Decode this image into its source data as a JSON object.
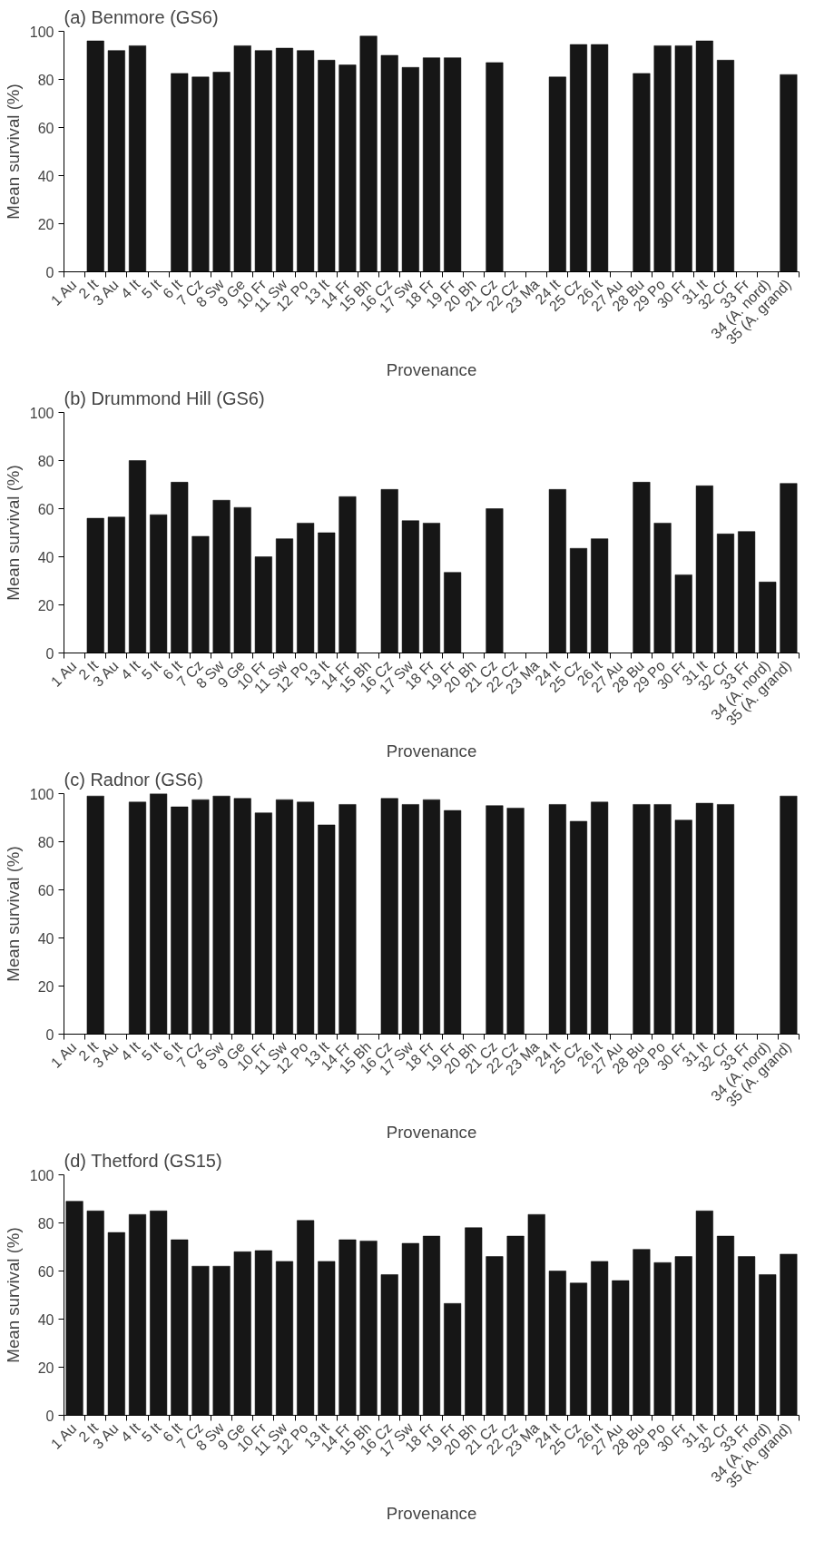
{
  "chart_data": [
    {
      "type": "bar",
      "title": "(a) Benmore (GS6)",
      "xlabel": "Provenance",
      "ylabel": "Mean survival (%)",
      "categories": [
        "1 Au",
        "2 It",
        "3 Au",
        "4 It",
        "5 It",
        "6 It",
        "7 Cz",
        "8 Sw",
        "9 Ge",
        "10 Fr",
        "11 Sw",
        "12 Po",
        "13 It",
        "14 Fr",
        "15 Bh",
        "16 Cz",
        "17 Sw",
        "18 Fr",
        "19 Fr",
        "20 Bh",
        "21 Cz",
        "22 Cz",
        "23 Ma",
        "24 It",
        "25 Cz",
        "26 It",
        "27 Au",
        "28 Bu",
        "29 Po",
        "30 Fr",
        "31 It",
        "32 Cr",
        "33 Fr",
        "34 (A. nord)",
        "35 (A. grand)"
      ],
      "values": [
        null,
        96,
        92,
        94,
        null,
        82.5,
        81,
        83,
        94,
        92,
        93,
        92,
        88,
        86,
        98,
        90,
        85,
        89,
        89,
        null,
        87,
        null,
        null,
        81,
        94.5,
        94.5,
        null,
        82.5,
        94,
        94,
        96,
        88,
        null,
        null,
        82
      ],
      "color": "#161616",
      "ylim": [
        0,
        100
      ],
      "yticks": [
        0,
        20,
        40,
        60,
        80,
        100
      ],
      "grid": false
    },
    {
      "type": "bar",
      "title": "(b) Drummond Hill (GS6)",
      "xlabel": "Provenance",
      "ylabel": "Mean survival (%)",
      "categories": [
        "1 Au",
        "2 It",
        "3 Au",
        "4 It",
        "5 It",
        "6 It",
        "7 Cz",
        "8 Sw",
        "9 Ge",
        "10 Fr",
        "11 Sw",
        "12 Po",
        "13 It",
        "14 Fr",
        "15 Bh",
        "16 Cz",
        "17 Sw",
        "18 Fr",
        "19 Fr",
        "20 Bh",
        "21 Cz",
        "22 Cz",
        "23 Ma",
        "24 It",
        "25 Cz",
        "26 It",
        "27 Au",
        "28 Bu",
        "29 Po",
        "30 Fr",
        "31 It",
        "32 Cr",
        "33 Fr",
        "34 (A. nord)",
        "35 (A. grand)"
      ],
      "values": [
        null,
        56,
        56.5,
        80,
        57.5,
        71,
        48.5,
        63.5,
        60.5,
        40,
        47.5,
        54,
        50,
        65,
        null,
        68,
        55,
        54,
        33.5,
        null,
        60,
        null,
        null,
        68,
        43.5,
        47.5,
        null,
        71,
        54,
        32.5,
        69.5,
        49.5,
        50.5,
        29.5,
        70.5
      ],
      "color": "#161616",
      "ylim": [
        0,
        100
      ],
      "yticks": [
        0,
        20,
        40,
        60,
        80,
        100
      ],
      "grid": false
    },
    {
      "type": "bar",
      "title": "(c) Radnor (GS6)",
      "xlabel": "Provenance",
      "ylabel": "Mean survival (%)",
      "categories": [
        "1 Au",
        "2 It",
        "3 Au",
        "4 It",
        "5 It",
        "6 It",
        "7 Cz",
        "8 Sw",
        "9 Ge",
        "10 Fr",
        "11 Sw",
        "12 Po",
        "13 It",
        "14 Fr",
        "15 Bh",
        "16 Cz",
        "17 Sw",
        "18 Fr",
        "19 Fr",
        "20 Bh",
        "21 Cz",
        "22 Cz",
        "23 Ma",
        "24 It",
        "25 Cz",
        "26 It",
        "27 Au",
        "28 Bu",
        "29 Po",
        "30 Fr",
        "31 It",
        "32 Cr",
        "33 Fr",
        "34 (A. nord)",
        "35 (A. grand)"
      ],
      "values": [
        null,
        99,
        null,
        96.5,
        100,
        94.5,
        97.5,
        99,
        98,
        92,
        97.5,
        96.5,
        87,
        95.5,
        null,
        98,
        95.5,
        97.5,
        93,
        null,
        95,
        94,
        null,
        95.5,
        88.5,
        96.5,
        null,
        95.5,
        95.5,
        89,
        96,
        95.5,
        null,
        null,
        99
      ],
      "color": "#161616",
      "ylim": [
        0,
        100
      ],
      "yticks": [
        0,
        20,
        40,
        60,
        80,
        100
      ],
      "grid": false
    },
    {
      "type": "bar",
      "title": "(d) Thetford (GS15)",
      "xlabel": "Provenance",
      "ylabel": "Mean survival (%)",
      "categories": [
        "1 Au",
        "2 It",
        "3 Au",
        "4 It",
        "5 It",
        "6 It",
        "7 Cz",
        "8 Sw",
        "9 Ge",
        "10 Fr",
        "11 Sw",
        "12 Po",
        "13 It",
        "14 Fr",
        "15 Bh",
        "16 Cz",
        "17 Sw",
        "18 Fr",
        "19 Fr",
        "20 Bh",
        "21 Cz",
        "22 Cz",
        "23 Ma",
        "24 It",
        "25 Cz",
        "26 It",
        "27 Au",
        "28 Bu",
        "29 Po",
        "30 Fr",
        "31 It",
        "32 Cr",
        "33 Fr",
        "34 (A. nord)",
        "35 (A. grand)"
      ],
      "values": [
        89,
        85,
        76,
        83.5,
        85,
        73,
        62,
        62,
        68,
        68.5,
        64,
        81,
        64,
        73,
        72.5,
        58.5,
        71.5,
        74.5,
        46.5,
        78,
        66,
        74.5,
        83.5,
        60,
        55,
        64,
        56,
        69,
        63.5,
        66,
        85,
        74.5,
        66,
        58.5,
        67
      ],
      "color": "#161616",
      "ylim": [
        0,
        100
      ],
      "yticks": [
        0,
        20,
        40,
        60,
        80,
        100
      ],
      "grid": false
    }
  ]
}
